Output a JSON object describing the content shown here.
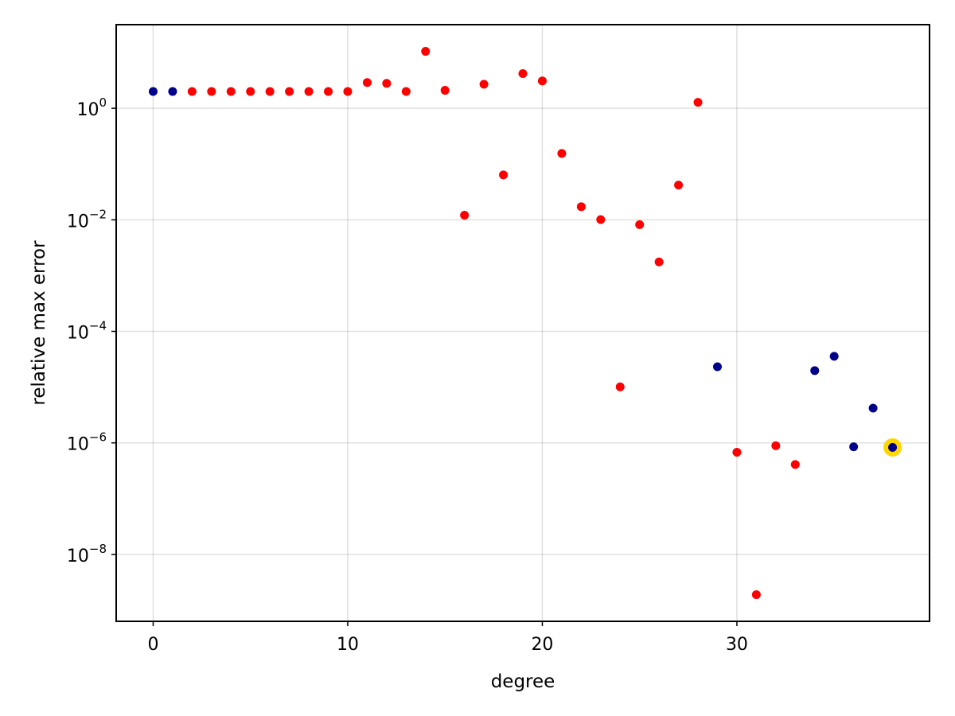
{
  "chart_data": {
    "type": "scatter",
    "xlabel": "degree",
    "ylabel": "relative max error",
    "y_scale": "log10",
    "xlim": [
      -1.9,
      39.9
    ],
    "ylim_exponent": [
      -9.2,
      1.5
    ],
    "x_ticks": [
      0,
      10,
      20,
      30
    ],
    "y_ticks": [
      {
        "exponent": 0,
        "base": "10",
        "sup": "0"
      },
      {
        "exponent": -2,
        "base": "10",
        "sup": "−2"
      },
      {
        "exponent": -4,
        "base": "10",
        "sup": "−4"
      },
      {
        "exponent": -6,
        "base": "10",
        "sup": "−6"
      },
      {
        "exponent": -8,
        "base": "10",
        "sup": "−8"
      }
    ],
    "grid": true,
    "colors": {
      "navy": "#00008b",
      "red": "#ff0000",
      "highlight": "#ffd700"
    },
    "points": [
      {
        "x": 0,
        "y": 2.0,
        "color": "navy"
      },
      {
        "x": 1,
        "y": 2.0,
        "color": "navy"
      },
      {
        "x": 2,
        "y": 2.0,
        "color": "red"
      },
      {
        "x": 3,
        "y": 2.0,
        "color": "red"
      },
      {
        "x": 4,
        "y": 2.0,
        "color": "red"
      },
      {
        "x": 5,
        "y": 2.0,
        "color": "red"
      },
      {
        "x": 6,
        "y": 2.0,
        "color": "red"
      },
      {
        "x": 7,
        "y": 2.0,
        "color": "red"
      },
      {
        "x": 8,
        "y": 2.0,
        "color": "red"
      },
      {
        "x": 9,
        "y": 2.0,
        "color": "red"
      },
      {
        "x": 10,
        "y": 2.0,
        "color": "red"
      },
      {
        "x": 11,
        "y": 2.9,
        "color": "red"
      },
      {
        "x": 12,
        "y": 2.8,
        "color": "red"
      },
      {
        "x": 13,
        "y": 2.0,
        "color": "red"
      },
      {
        "x": 14,
        "y": 10.5,
        "color": "red"
      },
      {
        "x": 15,
        "y": 2.1,
        "color": "red"
      },
      {
        "x": 16,
        "y": 0.0121,
        "color": "red"
      },
      {
        "x": 17,
        "y": 2.7,
        "color": "red"
      },
      {
        "x": 18,
        "y": 0.064,
        "color": "red"
      },
      {
        "x": 19,
        "y": 4.2,
        "color": "red"
      },
      {
        "x": 20,
        "y": 3.1,
        "color": "red"
      },
      {
        "x": 21,
        "y": 0.155,
        "color": "red"
      },
      {
        "x": 22,
        "y": 0.0172,
        "color": "red"
      },
      {
        "x": 23,
        "y": 0.0101,
        "color": "red"
      },
      {
        "x": 24,
        "y": 1.01e-05,
        "color": "red"
      },
      {
        "x": 25,
        "y": 0.0082,
        "color": "red"
      },
      {
        "x": 26,
        "y": 0.00176,
        "color": "red"
      },
      {
        "x": 27,
        "y": 0.042,
        "color": "red"
      },
      {
        "x": 28,
        "y": 1.28,
        "color": "red"
      },
      {
        "x": 29,
        "y": 2.32e-05,
        "color": "navy"
      },
      {
        "x": 30,
        "y": 6.8e-07,
        "color": "red"
      },
      {
        "x": 31,
        "y": 1.9e-09,
        "color": "red"
      },
      {
        "x": 32,
        "y": 8.9e-07,
        "color": "red"
      },
      {
        "x": 33,
        "y": 4.1e-07,
        "color": "red"
      },
      {
        "x": 34,
        "y": 1.98e-05,
        "color": "navy"
      },
      {
        "x": 35,
        "y": 3.57e-05,
        "color": "navy"
      },
      {
        "x": 36,
        "y": 8.5e-07,
        "color": "navy"
      },
      {
        "x": 37,
        "y": 4.2e-06,
        "color": "navy"
      },
      {
        "x": 38,
        "y": 8.3e-07,
        "color": "navy",
        "highlighted": true
      }
    ]
  }
}
